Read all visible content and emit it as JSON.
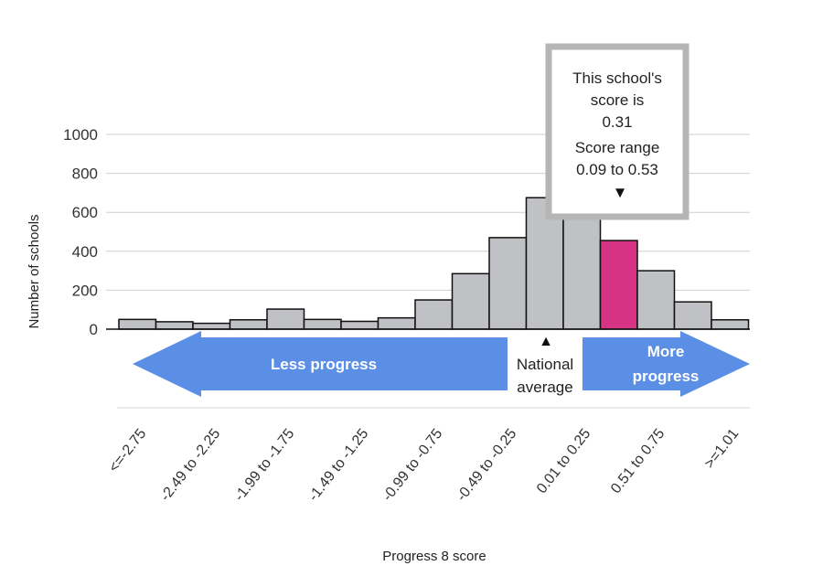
{
  "chart_data": {
    "type": "bar",
    "xlabel": "Progress 8 score",
    "ylabel": "Number of schools",
    "ylim": [
      0,
      1000
    ],
    "yticks": [
      0,
      200,
      400,
      600,
      800,
      1000
    ],
    "grid": true,
    "categories": [
      "<=-2.75",
      "",
      "-2.49 to -2.25",
      "",
      "-1.99 to -1.75",
      "",
      "-1.49 to -1.25",
      "",
      "-0.99 to -0.75",
      "",
      "-0.49 to -0.25",
      "",
      "0.01 to 0.25",
      "",
      "0.51 to 0.75",
      "",
      ">=1.01"
    ],
    "values": [
      50,
      38,
      30,
      48,
      103,
      50,
      40,
      58,
      150,
      285,
      470,
      675,
      700,
      455,
      300,
      140,
      48
    ],
    "highlight_index": 13,
    "colors": {
      "bar": "#c0c1c4",
      "highlight": "#d63384",
      "arrow": "#5b8fe6",
      "bar_stroke": "#111111",
      "grid": "#cfcfcf"
    },
    "annotations": {
      "less_progress": "Less progress",
      "more_progress_line1": "More",
      "more_progress_line2": "progress",
      "national_line1": "National",
      "national_line2": "average",
      "national_marker": "▲"
    },
    "tooltip": {
      "line1": "This school's",
      "line2": "score is",
      "line3": "0.31",
      "line4": "Score range",
      "line5": "0.09 to 0.53",
      "marker": "▼"
    }
  }
}
